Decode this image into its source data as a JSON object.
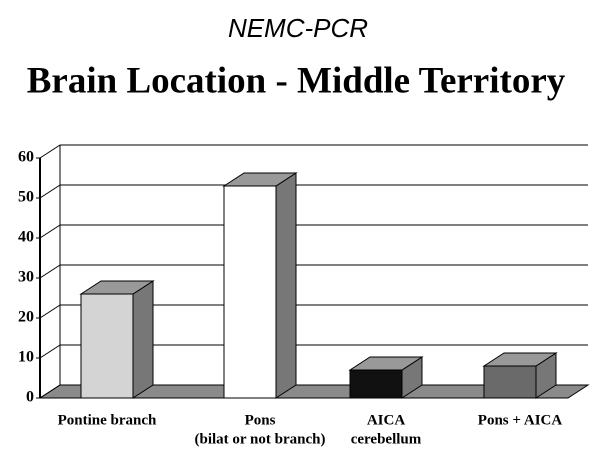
{
  "chart_data": {
    "type": "bar3d",
    "subtitle": "NEMC-PCR",
    "title": "Brain Location - Middle Territory",
    "categories": [
      [
        "Pontine branch"
      ],
      [
        "Pons",
        "(bilat or not branch)"
      ],
      [
        "AICA",
        "cerebellum"
      ],
      [
        "Pons + AICA"
      ]
    ],
    "values": [
      26,
      53,
      7,
      8
    ],
    "colors": [
      "#d4d4d4",
      "#ffffff",
      "#111111",
      "#6a6a6a"
    ],
    "ylim": [
      0,
      60
    ],
    "yticks": [
      0,
      10,
      20,
      30,
      40,
      50,
      60
    ],
    "grid": true
  }
}
